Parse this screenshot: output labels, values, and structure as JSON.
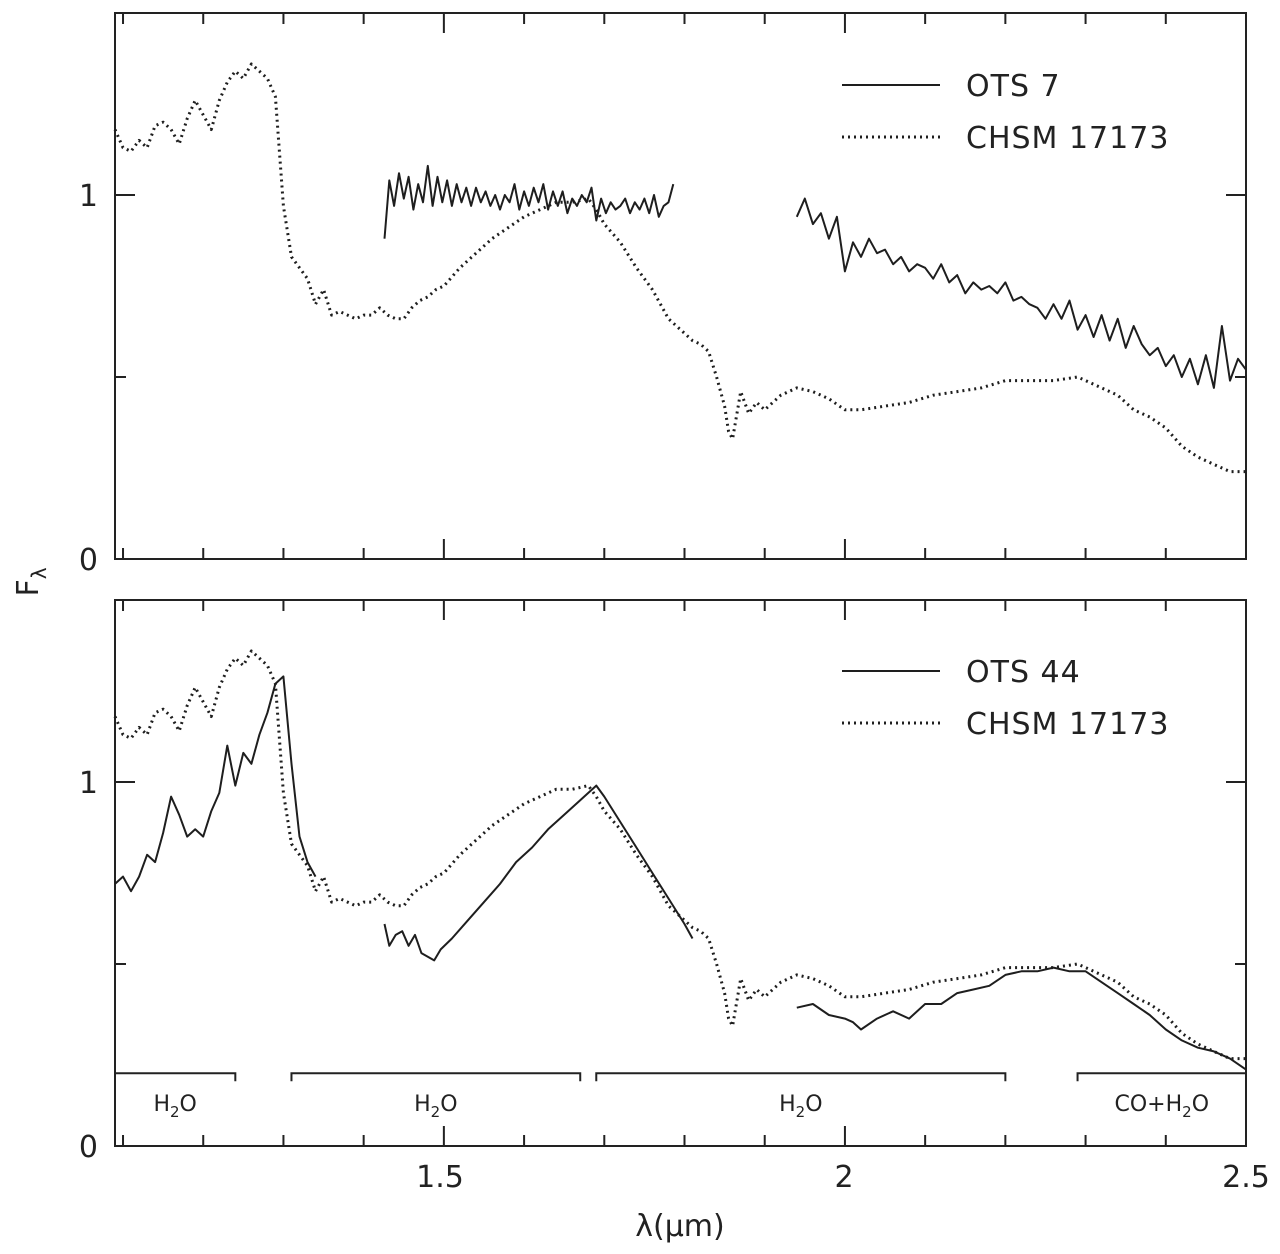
{
  "chart_data": [
    {
      "type": "line",
      "panel": "top",
      "xlim": [
        1.09,
        2.5
      ],
      "ylim": [
        0,
        1.5
      ],
      "xlabel": "λ(μm)",
      "ylabel": "F",
      "ylabel_sub": "λ",
      "y_ticks_labeled": [
        "0",
        "1"
      ],
      "x_ticks_labeled": [],
      "legend_position": "top-right",
      "series": [
        {
          "name": "OTS 7",
          "style": "solid",
          "segments": [
            {
              "x": [
                1.426,
                1.432,
                1.438,
                1.444,
                1.45,
                1.456,
                1.462,
                1.468,
                1.474,
                1.48,
                1.486,
                1.492,
                1.498,
                1.504,
                1.51,
                1.516,
                1.522,
                1.528,
                1.534,
                1.54,
                1.546,
                1.552,
                1.558,
                1.564,
                1.57,
                1.576,
                1.582,
                1.588,
                1.594,
                1.6,
                1.606,
                1.612,
                1.618,
                1.624,
                1.63,
                1.636,
                1.642,
                1.648,
                1.654,
                1.66,
                1.666,
                1.672,
                1.678,
                1.684,
                1.69,
                1.696,
                1.702,
                1.708,
                1.714,
                1.72,
                1.726,
                1.732,
                1.738,
                1.744,
                1.75,
                1.756,
                1.762,
                1.768,
                1.774,
                1.78,
                1.786
              ],
              "y": [
                0.88,
                1.04,
                0.97,
                1.06,
                0.99,
                1.05,
                0.96,
                1.03,
                0.98,
                1.08,
                0.97,
                1.05,
                0.98,
                1.04,
                0.97,
                1.03,
                0.98,
                1.02,
                0.97,
                1.02,
                0.98,
                1.01,
                0.97,
                1.0,
                0.96,
                1.0,
                0.98,
                1.03,
                0.96,
                1.01,
                0.97,
                1.02,
                0.98,
                1.03,
                0.96,
                1.01,
                0.97,
                1.01,
                0.95,
                0.99,
                0.97,
                1.0,
                0.98,
                1.02,
                0.93,
                0.99,
                0.95,
                0.98,
                0.96,
                0.97,
                0.99,
                0.95,
                0.98,
                0.96,
                0.99,
                0.95,
                1.0,
                0.94,
                0.97,
                0.98,
                1.03
              ]
            },
            {
              "x": [
                1.94,
                1.95,
                1.96,
                1.97,
                1.98,
                1.99,
                2.0,
                2.01,
                2.02,
                2.03,
                2.04,
                2.05,
                2.06,
                2.07,
                2.08,
                2.09,
                2.1,
                2.11,
                2.12,
                2.13,
                2.14,
                2.15,
                2.16,
                2.17,
                2.18,
                2.19,
                2.2,
                2.21,
                2.22,
                2.23,
                2.24,
                2.25,
                2.26,
                2.27,
                2.28,
                2.29,
                2.3,
                2.31,
                2.32,
                2.33,
                2.34,
                2.35,
                2.36,
                2.37,
                2.38,
                2.39,
                2.4,
                2.41,
                2.42,
                2.43,
                2.44,
                2.45,
                2.46,
                2.47,
                2.48,
                2.49,
                2.5
              ],
              "y": [
                0.94,
                0.99,
                0.92,
                0.95,
                0.88,
                0.94,
                0.79,
                0.87,
                0.83,
                0.88,
                0.84,
                0.85,
                0.81,
                0.83,
                0.79,
                0.81,
                0.8,
                0.77,
                0.81,
                0.76,
                0.78,
                0.73,
                0.76,
                0.74,
                0.75,
                0.73,
                0.76,
                0.71,
                0.72,
                0.7,
                0.69,
                0.66,
                0.7,
                0.66,
                0.71,
                0.63,
                0.67,
                0.61,
                0.67,
                0.6,
                0.66,
                0.58,
                0.64,
                0.59,
                0.56,
                0.58,
                0.53,
                0.56,
                0.5,
                0.55,
                0.48,
                0.56,
                0.47,
                0.64,
                0.49,
                0.55,
                0.52
              ]
            }
          ]
        },
        {
          "name": "CHSM 17173",
          "style": "dotted",
          "x": [
            1.09,
            1.1,
            1.11,
            1.12,
            1.13,
            1.14,
            1.15,
            1.16,
            1.17,
            1.18,
            1.19,
            1.2,
            1.21,
            1.22,
            1.23,
            1.24,
            1.25,
            1.26,
            1.27,
            1.28,
            1.29,
            1.3,
            1.31,
            1.32,
            1.33,
            1.34,
            1.35,
            1.36,
            1.37,
            1.38,
            1.39,
            1.4,
            1.41,
            1.42,
            1.43,
            1.44,
            1.45,
            1.46,
            1.47,
            1.48,
            1.49,
            1.5,
            1.52,
            1.54,
            1.56,
            1.58,
            1.6,
            1.62,
            1.64,
            1.66,
            1.68,
            1.69,
            1.7,
            1.72,
            1.74,
            1.76,
            1.78,
            1.8,
            1.81,
            1.82,
            1.83,
            1.84,
            1.85,
            1.855,
            1.86,
            1.87,
            1.88,
            1.89,
            1.9,
            1.92,
            1.94,
            1.96,
            1.98,
            2.0,
            2.02,
            2.05,
            2.08,
            2.11,
            2.14,
            2.17,
            2.2,
            2.23,
            2.26,
            2.29,
            2.3,
            2.32,
            2.34,
            2.36,
            2.38,
            2.4,
            2.42,
            2.44,
            2.46,
            2.48,
            2.5
          ],
          "y": [
            1.18,
            1.13,
            1.12,
            1.15,
            1.13,
            1.19,
            1.2,
            1.18,
            1.14,
            1.21,
            1.26,
            1.22,
            1.18,
            1.26,
            1.31,
            1.34,
            1.32,
            1.36,
            1.34,
            1.32,
            1.27,
            0.97,
            0.83,
            0.8,
            0.77,
            0.7,
            0.74,
            0.67,
            0.68,
            0.67,
            0.66,
            0.67,
            0.67,
            0.69,
            0.67,
            0.66,
            0.66,
            0.69,
            0.71,
            0.72,
            0.74,
            0.75,
            0.8,
            0.84,
            0.88,
            0.91,
            0.94,
            0.96,
            0.98,
            0.98,
            0.99,
            0.96,
            0.92,
            0.87,
            0.8,
            0.74,
            0.66,
            0.62,
            0.6,
            0.59,
            0.57,
            0.5,
            0.42,
            0.35,
            0.33,
            0.46,
            0.4,
            0.43,
            0.41,
            0.45,
            0.47,
            0.46,
            0.44,
            0.41,
            0.41,
            0.42,
            0.43,
            0.45,
            0.46,
            0.47,
            0.49,
            0.49,
            0.49,
            0.5,
            0.49,
            0.47,
            0.45,
            0.41,
            0.39,
            0.36,
            0.31,
            0.28,
            0.26,
            0.24,
            0.24
          ]
        }
      ]
    },
    {
      "type": "line",
      "panel": "bottom",
      "xlim": [
        1.09,
        2.5
      ],
      "ylim": [
        0,
        1.5
      ],
      "xlabel": "λ(μm)",
      "ylabel": "F",
      "ylabel_sub": "λ",
      "y_ticks_labeled": [
        "0",
        "1"
      ],
      "x_ticks_labeled": [
        "1.5",
        "2",
        "2.5"
      ],
      "x_tick_values": [
        1.5,
        2.0,
        2.5
      ],
      "legend_position": "top-right",
      "series": [
        {
          "name": "OTS 44",
          "style": "solid",
          "segments": [
            {
              "x": [
                1.09,
                1.1,
                1.11,
                1.12,
                1.13,
                1.14,
                1.15,
                1.16,
                1.17,
                1.18,
                1.19,
                1.2,
                1.21,
                1.22,
                1.23,
                1.24,
                1.25,
                1.26,
                1.27,
                1.28,
                1.29,
                1.3,
                1.31,
                1.32,
                1.33,
                1.34
              ],
              "y": [
                0.72,
                0.74,
                0.7,
                0.74,
                0.8,
                0.78,
                0.86,
                0.96,
                0.91,
                0.85,
                0.87,
                0.85,
                0.92,
                0.97,
                1.1,
                0.99,
                1.08,
                1.05,
                1.13,
                1.19,
                1.27,
                1.29,
                1.05,
                0.85,
                0.78,
                0.74
              ]
            },
            {
              "x": [
                1.426,
                1.432,
                1.44,
                1.448,
                1.456,
                1.464,
                1.472,
                1.48,
                1.488,
                1.496,
                1.51,
                1.53,
                1.55,
                1.57,
                1.59,
                1.61,
                1.63,
                1.65,
                1.67,
                1.68,
                1.69,
                1.7,
                1.72,
                1.74,
                1.76,
                1.78,
                1.8,
                1.81
              ],
              "y": [
                0.61,
                0.55,
                0.58,
                0.59,
                0.55,
                0.58,
                0.53,
                0.52,
                0.51,
                0.54,
                0.57,
                0.62,
                0.67,
                0.72,
                0.78,
                0.82,
                0.87,
                0.91,
                0.95,
                0.97,
                0.99,
                0.96,
                0.89,
                0.82,
                0.75,
                0.68,
                0.61,
                0.57
              ]
            },
            {
              "x": [
                1.94,
                1.96,
                1.98,
                2.0,
                2.01,
                2.02,
                2.04,
                2.06,
                2.08,
                2.1,
                2.12,
                2.14,
                2.16,
                2.18,
                2.2,
                2.22,
                2.24,
                2.26,
                2.28,
                2.3,
                2.32,
                2.34,
                2.36,
                2.38,
                2.4,
                2.42,
                2.44,
                2.46,
                2.48,
                2.5
              ],
              "y": [
                0.38,
                0.39,
                0.36,
                0.35,
                0.34,
                0.32,
                0.35,
                0.37,
                0.35,
                0.39,
                0.39,
                0.42,
                0.43,
                0.44,
                0.47,
                0.48,
                0.48,
                0.49,
                0.48,
                0.48,
                0.45,
                0.42,
                0.39,
                0.36,
                0.32,
                0.29,
                0.27,
                0.26,
                0.24,
                0.21
              ]
            }
          ]
        },
        {
          "name": "CHSM 17173",
          "style": "dotted",
          "x": [
            1.09,
            1.1,
            1.11,
            1.12,
            1.13,
            1.14,
            1.15,
            1.16,
            1.17,
            1.18,
            1.19,
            1.2,
            1.21,
            1.22,
            1.23,
            1.24,
            1.25,
            1.26,
            1.27,
            1.28,
            1.29,
            1.3,
            1.31,
            1.32,
            1.33,
            1.34,
            1.35,
            1.36,
            1.37,
            1.38,
            1.39,
            1.4,
            1.41,
            1.42,
            1.43,
            1.44,
            1.45,
            1.46,
            1.47,
            1.48,
            1.49,
            1.5,
            1.52,
            1.54,
            1.56,
            1.58,
            1.6,
            1.62,
            1.64,
            1.66,
            1.68,
            1.69,
            1.7,
            1.72,
            1.74,
            1.76,
            1.78,
            1.8,
            1.81,
            1.82,
            1.83,
            1.84,
            1.85,
            1.855,
            1.86,
            1.87,
            1.88,
            1.89,
            1.9,
            1.92,
            1.94,
            1.96,
            1.98,
            2.0,
            2.02,
            2.05,
            2.08,
            2.11,
            2.14,
            2.17,
            2.2,
            2.23,
            2.26,
            2.29,
            2.3,
            2.32,
            2.34,
            2.36,
            2.38,
            2.4,
            2.42,
            2.44,
            2.46,
            2.48,
            2.5
          ],
          "y": [
            1.18,
            1.13,
            1.12,
            1.15,
            1.13,
            1.19,
            1.2,
            1.18,
            1.14,
            1.21,
            1.26,
            1.22,
            1.18,
            1.26,
            1.31,
            1.34,
            1.32,
            1.36,
            1.34,
            1.32,
            1.27,
            0.97,
            0.83,
            0.8,
            0.77,
            0.7,
            0.74,
            0.67,
            0.68,
            0.67,
            0.66,
            0.67,
            0.67,
            0.69,
            0.67,
            0.66,
            0.66,
            0.69,
            0.71,
            0.72,
            0.74,
            0.75,
            0.8,
            0.84,
            0.88,
            0.91,
            0.94,
            0.96,
            0.98,
            0.98,
            0.99,
            0.96,
            0.92,
            0.87,
            0.8,
            0.74,
            0.66,
            0.62,
            0.6,
            0.59,
            0.57,
            0.5,
            0.42,
            0.35,
            0.33,
            0.46,
            0.4,
            0.43,
            0.41,
            0.45,
            0.47,
            0.46,
            0.44,
            0.41,
            0.41,
            0.42,
            0.43,
            0.45,
            0.46,
            0.47,
            0.49,
            0.49,
            0.49,
            0.5,
            0.49,
            0.47,
            0.45,
            0.41,
            0.39,
            0.36,
            0.31,
            0.28,
            0.26,
            0.24,
            0.24
          ]
        }
      ],
      "annotations": [
        {
          "label": "H",
          "sub": "2",
          "tail": "O",
          "x_range": [
            1.09,
            1.24
          ]
        },
        {
          "label": "H",
          "sub": "2",
          "tail": "O",
          "x_range": [
            1.31,
            1.67
          ]
        },
        {
          "label": "H",
          "sub": "2",
          "tail": "O",
          "x_range": [
            1.69,
            2.2
          ]
        },
        {
          "label": "CO+H",
          "sub": "2",
          "tail": "O",
          "x_range": [
            2.29,
            2.5
          ]
        }
      ],
      "annotation_level": 0.2
    }
  ]
}
